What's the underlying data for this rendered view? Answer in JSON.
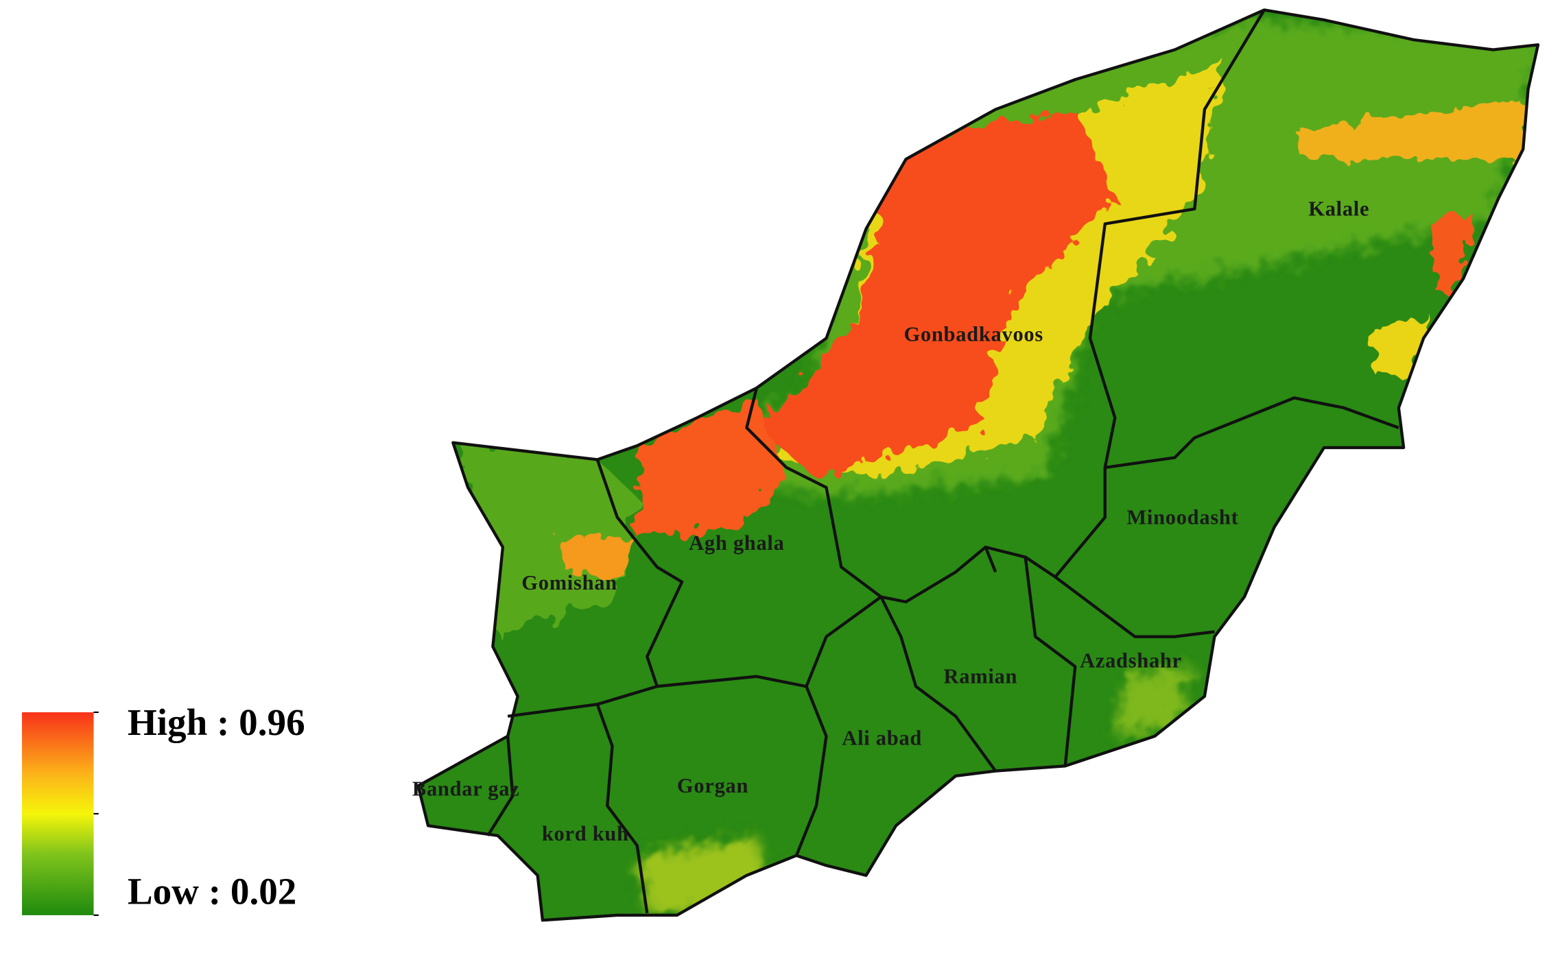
{
  "legend": {
    "high": "High : 0.96",
    "low": "Low : 0.02"
  },
  "districts": [
    {
      "label": "Kalale"
    },
    {
      "label": "Gonbadkavoos"
    },
    {
      "label": "Minoodasht"
    },
    {
      "label": "Agh ghala"
    },
    {
      "label": "Gomishan"
    },
    {
      "label": "Ramian"
    },
    {
      "label": "Azadshahr"
    },
    {
      "label": "Ali abad"
    },
    {
      "label": "Gorgan"
    },
    {
      "label": "Bandar gaz"
    },
    {
      "label": "kord kuh"
    }
  ]
}
